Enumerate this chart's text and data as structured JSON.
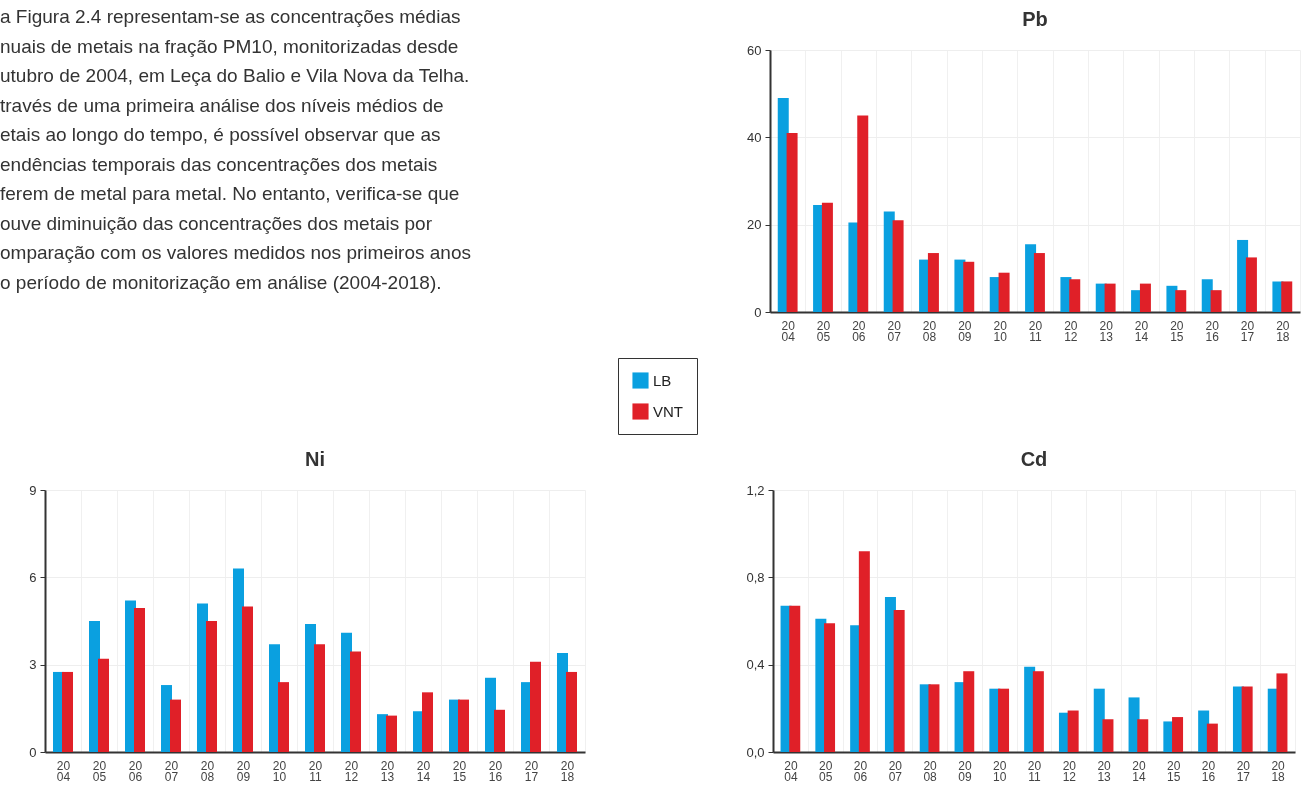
{
  "chart_data": [
    {
      "type": "other",
      "annotations": [
        "a Figura 2.4 representam-se as concentrações médias",
        "nuais de metais na fração PM10, monitorizadas desde",
        "utubro de 2004, em Leça do Balio e Vila Nova da Telha.",
        "través de uma primeira análise dos níveis médios de",
        "etais ao longo do tempo, é possível observar que as",
        "endências temporais das concentrações dos metais",
        "ferem de metal para metal. No entanto, verifica-se que",
        "ouve diminuição das concentrações dos metais por",
        "omparação com os valores medidos nos primeiros anos",
        "o período de monitorização em análise (2004-2018)."
      ]
    },
    {
      "type": "bar",
      "title": "Pb",
      "categories": [
        "2004",
        "2005",
        "2006",
        "2007",
        "2008",
        "2009",
        "2010",
        "2011",
        "2012",
        "2013",
        "2014",
        "2015",
        "2016",
        "2017",
        "2018"
      ],
      "series": [
        {
          "name": "LB",
          "color": "#0aa0e0",
          "values": [
            49,
            24.5,
            20.5,
            23,
            12,
            12,
            8,
            15.5,
            8,
            6.5,
            5,
            6,
            7.5,
            16.5,
            7
          ]
        },
        {
          "name": "VNT",
          "color": "#e02028",
          "values": [
            41,
            25,
            45,
            21,
            13.5,
            11.5,
            9,
            13.5,
            7.5,
            6.5,
            6.5,
            5,
            5,
            12.5,
            7
          ]
        }
      ],
      "ylim": [
        0,
        60
      ],
      "yticks": [
        0,
        20,
        40,
        60
      ],
      "grid": true,
      "legend": "bottom left"
    },
    {
      "type": "bar",
      "title": "Ni",
      "categories": [
        "2004",
        "2005",
        "2006",
        "2007",
        "2008",
        "2009",
        "2010",
        "2011",
        "2012",
        "2013",
        "2014",
        "2015",
        "2016",
        "2017",
        "2018"
      ],
      "series": [
        {
          "color": "#0aa0e0",
          "values": [
            2.75,
            4.5,
            5.2,
            2.3,
            5.1,
            6.3,
            3.7,
            4.4,
            4.1,
            1.3,
            1.4,
            1.8,
            2.55,
            2.4,
            3.4
          ]
        },
        {
          "color": "#e02028",
          "values": [
            2.75,
            3.2,
            4.95,
            1.8,
            4.5,
            5.0,
            2.4,
            3.7,
            3.45,
            1.25,
            2.05,
            1.8,
            1.45,
            3.1,
            2.75
          ]
        }
      ],
      "ylim": [
        0,
        9
      ],
      "yticks": [
        0,
        3,
        6,
        9
      ],
      "grid": true
    },
    {
      "type": "bar",
      "title": "Cd",
      "categories": [
        "2004",
        "2005",
        "2006",
        "2007",
        "2008",
        "2009",
        "2010",
        "2011",
        "2012",
        "2013",
        "2014",
        "2015",
        "2016",
        "2017",
        "2018"
      ],
      "series": [
        {
          "color": "#0aa0e0",
          "values": [
            0.67,
            0.61,
            0.58,
            0.71,
            0.31,
            0.32,
            0.29,
            0.39,
            0.18,
            0.29,
            0.25,
            0.14,
            0.19,
            0.3,
            0.29
          ]
        },
        {
          "color": "#e02028",
          "values": [
            0.67,
            0.59,
            0.92,
            0.65,
            0.31,
            0.37,
            0.29,
            0.37,
            0.19,
            0.15,
            0.15,
            0.16,
            0.13,
            0.3,
            0.36
          ]
        }
      ],
      "ylim": [
        0,
        1.2
      ],
      "yticks": [
        {
          "value": 0,
          "label": "0,0"
        },
        {
          "value": 0.4,
          "label": "0,4"
        },
        {
          "value": 0.8,
          "label": "0,8"
        },
        {
          "value": 1.2,
          "label": "1,2"
        }
      ],
      "grid": true
    }
  ]
}
